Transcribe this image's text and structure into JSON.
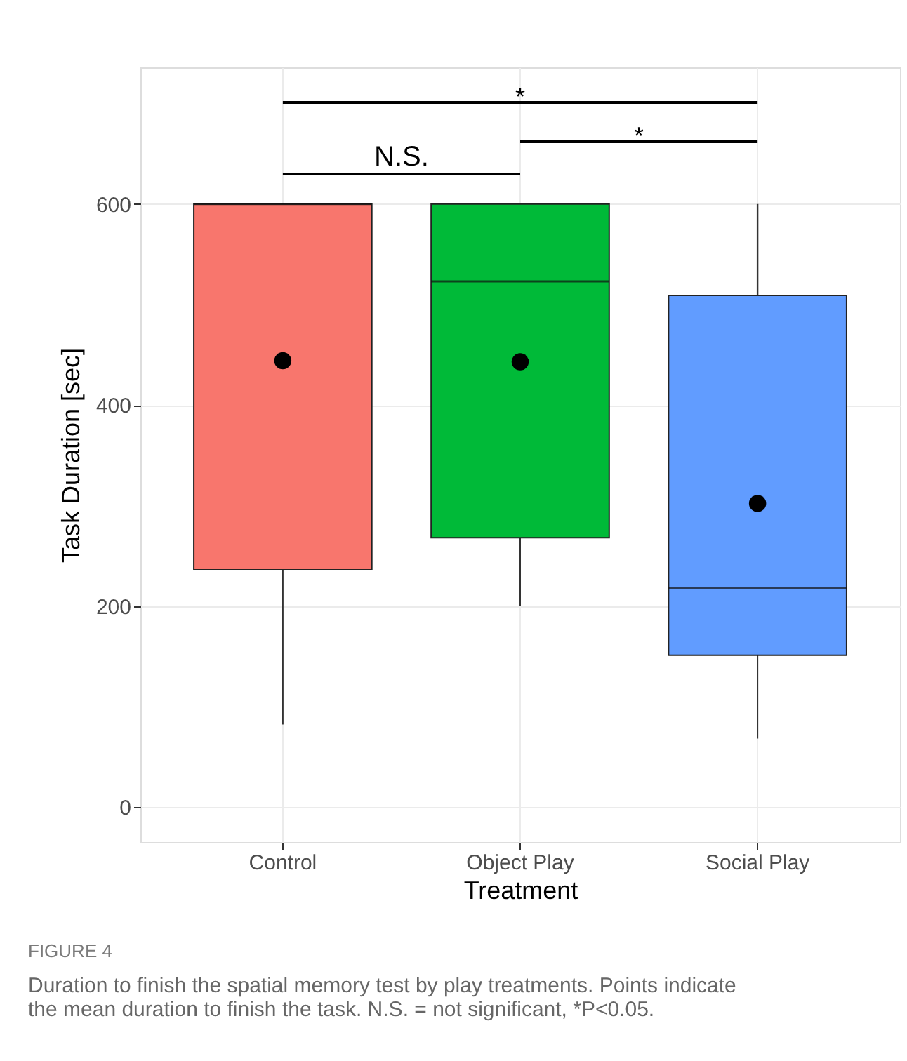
{
  "chart_data": {
    "type": "box",
    "xlabel": "Treatment",
    "ylabel": "Task Duration [sec]",
    "categories": [
      "Control",
      "Object Play",
      "Social Play"
    ],
    "colors": [
      "#f8766d",
      "#00ba38",
      "#619cff"
    ],
    "boxes": [
      {
        "low": 82,
        "q1": 236,
        "median": 600,
        "q3": 600,
        "high": 600,
        "mean": 444
      },
      {
        "low": 200,
        "q1": 268,
        "median": 523,
        "q3": 600,
        "high": 600,
        "mean": 443
      },
      {
        "low": 68,
        "q1": 151,
        "median": 218,
        "q3": 509,
        "high": 600,
        "mean": 302
      }
    ],
    "ylim": [
      -35,
      736
    ],
    "yticks": [
      0,
      200,
      400,
      600
    ],
    "grid": true,
    "legend": false,
    "annotations": [
      "N.S.",
      "*",
      "*",
      "FIGURE 4",
      "Duration to finish the spatial memory test by play treatments. Points indicate the mean duration to finish the task. N.S. = not significant, *P<0.05."
    ]
  }
}
